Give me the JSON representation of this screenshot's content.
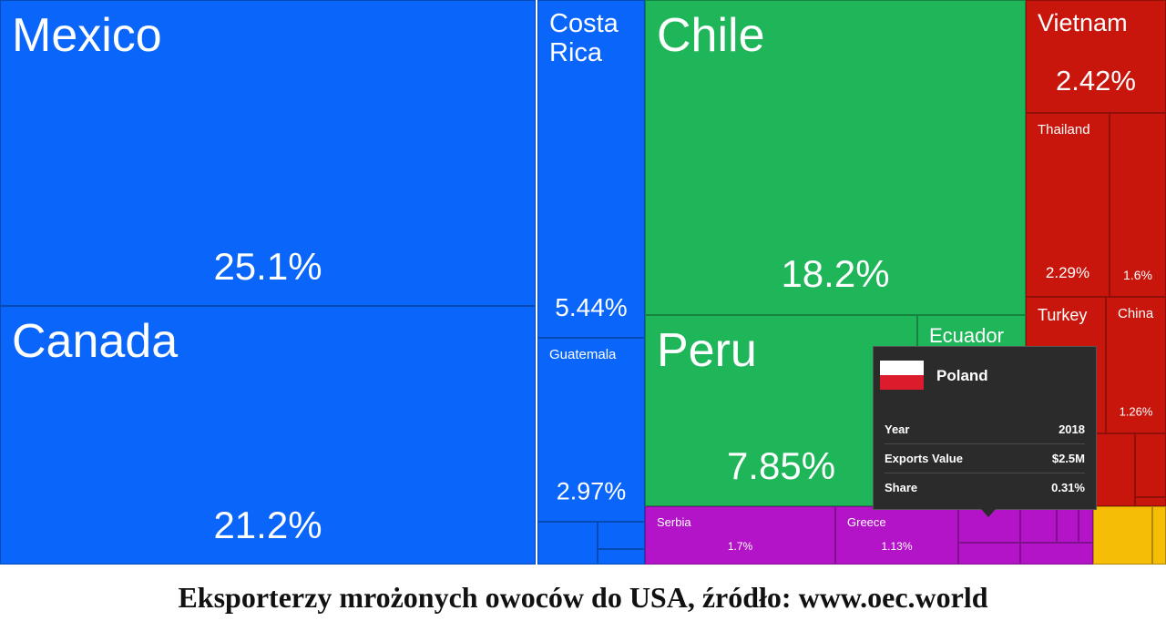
{
  "chart_data": {
    "type": "treemap",
    "categories": [
      "Mexico",
      "Canada",
      "Costa Rica",
      "Guatemala",
      "Chile",
      "Peru",
      "Ecuador",
      "Vietnam",
      "Thailand",
      null,
      "Turkey",
      "China",
      "Serbia",
      "Greece"
    ],
    "values": [
      25.1,
      21.2,
      5.44,
      2.97,
      18.2,
      7.85,
      null,
      2.42,
      2.29,
      1.6,
      null,
      1.26,
      1.7,
      1.13
    ],
    "value_labels": [
      "25.1%",
      "21.2%",
      "5.44%",
      "2.97%",
      "18.2%",
      "7.85%",
      null,
      "2.42%",
      "2.29%",
      "1.6%",
      null,
      "1.26%",
      "1.7%",
      "1.13%"
    ],
    "colors": [
      "#0a66fb",
      "#0a66fb",
      "#0a66fb",
      "#0a66fb",
      "#1fb65a",
      "#1fb65a",
      "#1fb65a",
      "#c8160d",
      "#c8160d",
      "#c8160d",
      "#c8160d",
      "#c8160d",
      "#b414c8",
      "#b414c8"
    ],
    "tooltip": {
      "title": "Poland",
      "rows": [
        [
          "Year",
          "2018"
        ],
        [
          "Exports Value",
          "$2.5M"
        ],
        [
          "Share",
          "0.31%"
        ]
      ]
    },
    "caption": "Eksporterzy mrożonych owoców do USA, źródło: www.oec.world"
  }
}
